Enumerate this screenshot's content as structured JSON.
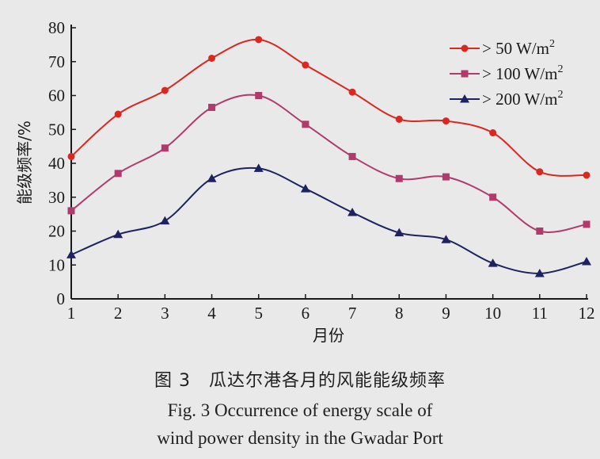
{
  "chart_data": {
    "type": "line",
    "title": "",
    "xlabel": "月份",
    "ylabel": "能级频率/%",
    "x": [
      1,
      2,
      3,
      4,
      5,
      6,
      7,
      8,
      9,
      10,
      11,
      12
    ],
    "xlim": [
      1,
      12
    ],
    "ylim": [
      0,
      80
    ],
    "yticks": [
      0,
      10,
      20,
      30,
      40,
      50,
      60,
      70,
      80
    ],
    "grid": false,
    "legend_position": "top-right",
    "series": [
      {
        "name": "> 50 W/m²",
        "legend_base": "> 50 W/m",
        "legend_sup": "2",
        "marker": "circle",
        "color": "#d9281f",
        "values": [
          42,
          54.5,
          61.5,
          71,
          76.5,
          69,
          61,
          53,
          52.5,
          49,
          37.5,
          36.5
        ]
      },
      {
        "name": "> 100 W/m²",
        "legend_base": "> 100 W/m",
        "legend_sup": "2",
        "marker": "square",
        "color": "#b03a6b",
        "values": [
          26,
          37,
          44.5,
          56.5,
          60,
          51.5,
          42,
          35.5,
          36,
          30,
          20,
          22
        ]
      },
      {
        "name": "> 200 W/m²",
        "legend_base": "> 200 W/m",
        "legend_sup": "2",
        "marker": "triangle",
        "color": "#1c2360",
        "values": [
          13,
          19,
          23,
          35.5,
          38.5,
          32.5,
          25.5,
          19.5,
          17.5,
          10.5,
          7.5,
          11
        ]
      }
    ]
  },
  "caption": {
    "cn": "图 3　瓜达尔港各月的风能能级频率",
    "en_line1": "Fig. 3  Occurrence of energy scale of",
    "en_line2": "wind power density in the Gwadar Port"
  }
}
